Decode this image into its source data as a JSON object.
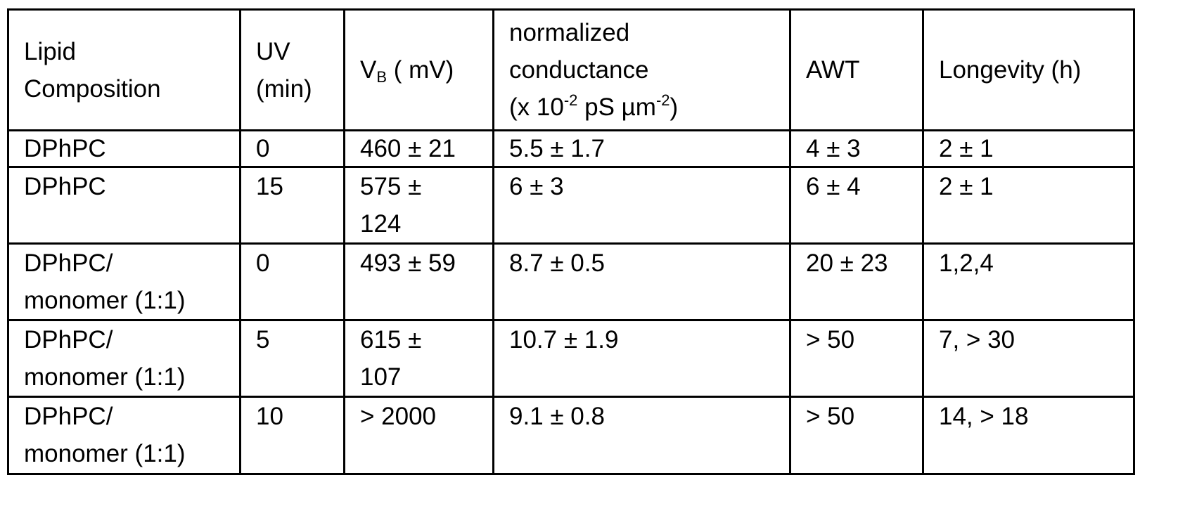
{
  "table": {
    "headers": {
      "lipid_composition": [
        "Lipid",
        "Composition"
      ],
      "uv": [
        "UV",
        "(min)"
      ],
      "vb": {
        "main": "V",
        "sub": "B",
        "rest": " ( mV)"
      },
      "conductance": {
        "line1": "normalized",
        "line2": "conductance",
        "line3_a": "(x 10",
        "line3_sup1": "-2",
        "line3_b": " pS µm",
        "line3_sup2": "-2",
        "line3_c": ")"
      },
      "awt": "AWT",
      "longevity": "Longevity (h)"
    },
    "rows": [
      {
        "lipid": [
          "DPhPC"
        ],
        "uv": "0",
        "vb": [
          "460 ± 21"
        ],
        "conductance": "5.5 ± 1.7",
        "awt": "4 ± 3",
        "longevity": "2 ± 1"
      },
      {
        "lipid": [
          "DPhPC"
        ],
        "uv": "15",
        "vb": [
          "575 ±",
          "124"
        ],
        "conductance": "6 ± 3",
        "awt": "6 ± 4",
        "longevity": "2 ± 1"
      },
      {
        "lipid": [
          "DPhPC/",
          "monomer (1:1)"
        ],
        "uv": "0",
        "vb": [
          "493 ± 59"
        ],
        "conductance": "8.7 ± 0.5",
        "awt": "20 ± 23",
        "longevity": "1,2,4"
      },
      {
        "lipid": [
          "DPhPC/",
          "monomer (1:1)"
        ],
        "uv": "5",
        "vb": [
          "615 ±",
          "107"
        ],
        "conductance": "10.7 ± 1.9",
        "awt": "> 50",
        "longevity": "7, > 30"
      },
      {
        "lipid": [
          "DPhPC/",
          "monomer (1:1)"
        ],
        "uv": "10",
        "vb": [
          "> 2000"
        ],
        "conductance": "9.1 ± 0.8",
        "awt": "> 50",
        "longevity": "14, > 18"
      }
    ]
  },
  "colors": {
    "border": "#000000",
    "text": "#000000",
    "background": "#ffffff"
  }
}
